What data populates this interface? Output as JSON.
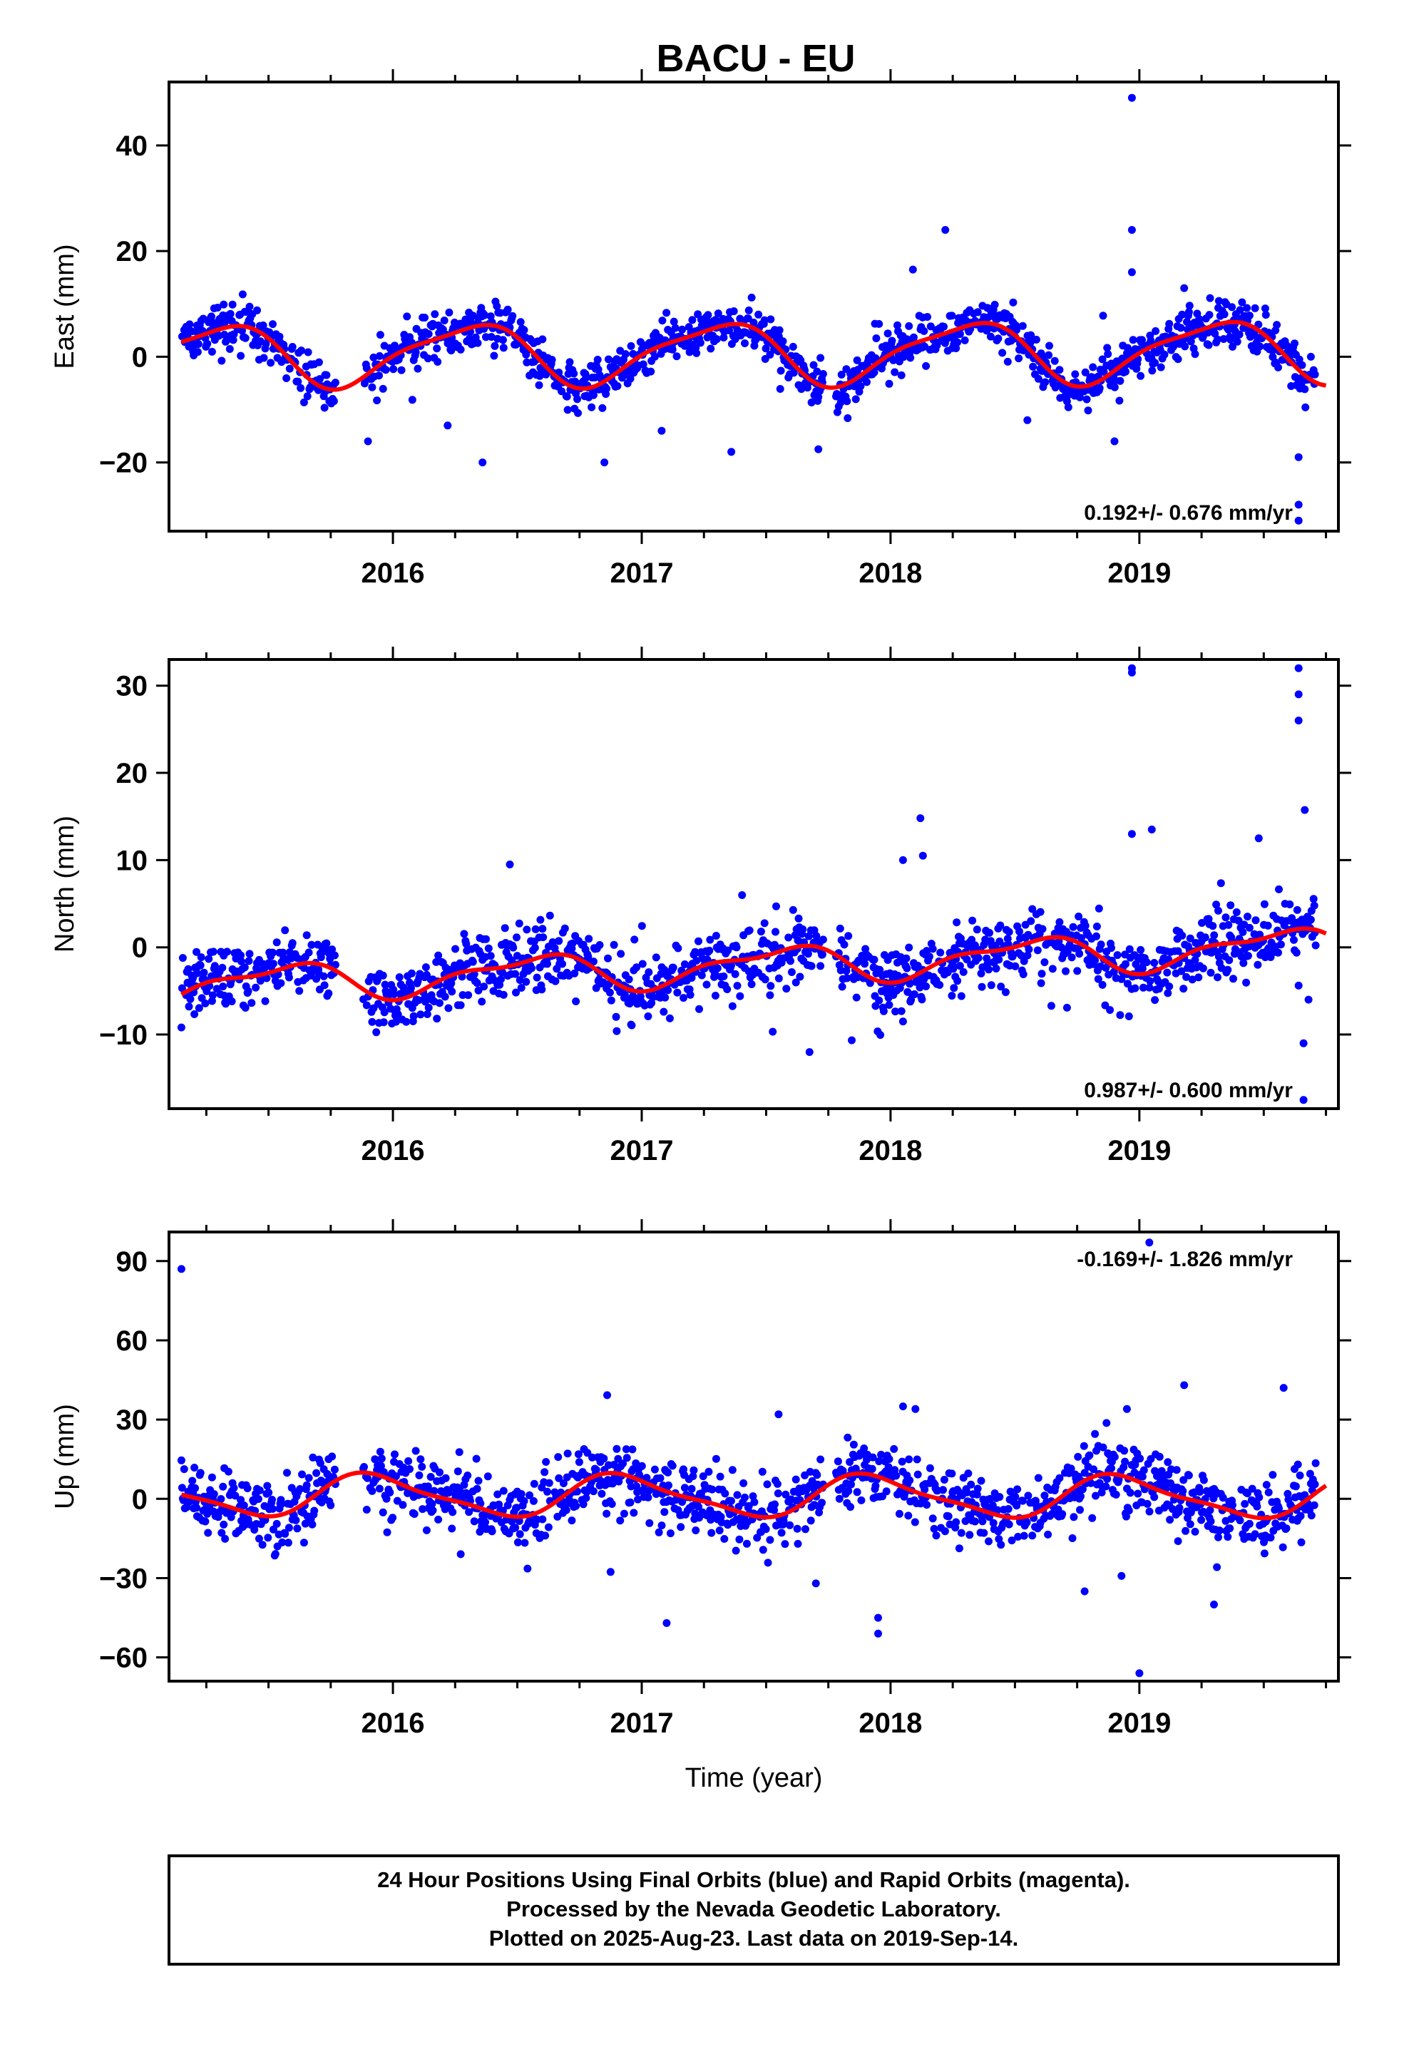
{
  "title": "BACU - EU",
  "chart_data": [
    {
      "type": "scatter",
      "id": "east",
      "ylabel": "East (mm)",
      "xlabel": "",
      "xlim": [
        2015.1,
        2019.8
      ],
      "ylim": [
        -33,
        52
      ],
      "yticks": [
        -20,
        0,
        20,
        40
      ],
      "xticks": [
        2016,
        2017,
        2018,
        2019
      ],
      "ytick_labels": [
        "−20",
        "0",
        "20",
        "40"
      ],
      "xtick_labels": [
        "2016",
        "2017",
        "2018",
        "2019"
      ],
      "rate_text": "0.192+/- 0.676 mm/yr",
      "rate_position": "bottom-right",
      "point_color": "#0000ff",
      "fit_color": "#ff0000",
      "model": {
        "offset": 0.8,
        "trend": 0.19,
        "amp1": 5.6,
        "phase1": 0.05,
        "amp2": 1.4,
        "phase2": 0.35
      },
      "noise": 2.2,
      "gaps": [
        [
          2015.77,
          2015.88
        ],
        [
          2017.73,
          2017.78
        ]
      ],
      "fit_segments": [
        [
          2015.15,
          2019.75
        ]
      ],
      "outliers": [
        [
          2015.9,
          -16
        ],
        [
          2016.22,
          -13
        ],
        [
          2016.36,
          -20
        ],
        [
          2016.85,
          -20
        ],
        [
          2017.08,
          -14
        ],
        [
          2017.36,
          -18
        ],
        [
          2017.71,
          -17.5
        ],
        [
          2018.09,
          16.5
        ],
        [
          2018.22,
          24
        ],
        [
          2018.55,
          -12
        ],
        [
          2018.97,
          49
        ],
        [
          2018.97,
          24
        ],
        [
          2018.97,
          16
        ],
        [
          2018.9,
          -16
        ],
        [
          2019.18,
          13
        ],
        [
          2019.64,
          -19
        ],
        [
          2019.64,
          -28
        ],
        [
          2019.64,
          -31
        ]
      ]
    },
    {
      "type": "scatter",
      "id": "north",
      "ylabel": "North (mm)",
      "xlabel": "",
      "xlim": [
        2015.1,
        2019.8
      ],
      "ylim": [
        -18.5,
        33
      ],
      "yticks": [
        -10,
        0,
        10,
        20,
        30
      ],
      "xticks": [
        2016,
        2017,
        2018,
        2019
      ],
      "ytick_labels": [
        "−10",
        "0",
        "10",
        "20",
        "30"
      ],
      "xtick_labels": [
        "2016",
        "2017",
        "2018",
        "2019"
      ],
      "rate_text": "0.987+/- 0.600 mm/yr",
      "rate_position": "bottom-right",
      "point_color": "#0000ff",
      "fit_color": "#ff0000",
      "model": {
        "offset": -2.0,
        "trend": 0.99,
        "amp1": 1.9,
        "phase1": 0.3,
        "amp2": 0.8,
        "phase2": 0.1
      },
      "noise": 1.9,
      "gaps": [
        [
          2015.77,
          2015.88
        ],
        [
          2017.73,
          2017.78
        ]
      ],
      "fit_segments": [
        [
          2015.15,
          2019.75
        ]
      ],
      "outliers": [
        [
          2016.47,
          9.5
        ],
        [
          2018.05,
          -8.5
        ],
        [
          2018.05,
          10
        ],
        [
          2018.12,
          14.8
        ],
        [
          2018.13,
          10.5
        ],
        [
          2018.97,
          32
        ],
        [
          2018.97,
          31.5
        ],
        [
          2018.97,
          13
        ],
        [
          2019.05,
          13.5
        ],
        [
          2019.48,
          12.5
        ],
        [
          2019.64,
          32
        ],
        [
          2019.64,
          29
        ],
        [
          2019.64,
          26
        ],
        [
          2019.66,
          -11
        ],
        [
          2019.66,
          -17.5
        ],
        [
          2019.68,
          -6
        ]
      ]
    },
    {
      "type": "scatter",
      "id": "up",
      "ylabel": "Up (mm)",
      "xlabel": "Time (year)",
      "xlim": [
        2015.1,
        2019.8
      ],
      "ylim": [
        -69,
        101
      ],
      "yticks": [
        -60,
        -30,
        0,
        30,
        60,
        90
      ],
      "xticks": [
        2016,
        2017,
        2018,
        2019
      ],
      "ytick_labels": [
        "−60",
        "−30",
        "0",
        "30",
        "60",
        "90"
      ],
      "xtick_labels": [
        "2016",
        "2017",
        "2018",
        "2019"
      ],
      "rate_text": "-0.169+/- 1.826 mm/yr",
      "rate_position": "top-right",
      "point_color": "#0000ff",
      "fit_color": "#ff0000",
      "model": {
        "offset": 1.0,
        "trend": -0.17,
        "amp1": 7.5,
        "phase1": 0.68,
        "amp2": 2.0,
        "phase2": 0.2
      },
      "noise": 6.5,
      "gaps": [
        [
          2015.77,
          2015.88
        ],
        [
          2017.73,
          2017.78
        ]
      ],
      "fit_segments": [
        [
          2015.15,
          2019.75
        ]
      ],
      "outliers": [
        [
          2015.15,
          87
        ],
        [
          2017.1,
          -47
        ],
        [
          2017.55,
          32
        ],
        [
          2017.7,
          -32
        ],
        [
          2017.95,
          -45
        ],
        [
          2017.95,
          -51
        ],
        [
          2018.05,
          35
        ],
        [
          2018.1,
          34
        ],
        [
          2018.78,
          -35
        ],
        [
          2018.95,
          34
        ],
        [
          2019.0,
          -66
        ],
        [
          2019.04,
          97
        ],
        [
          2019.18,
          43
        ],
        [
          2019.3,
          -40
        ],
        [
          2019.58,
          42
        ]
      ]
    }
  ],
  "footer": {
    "line1": "24 Hour Positions Using Final Orbits (blue) and Rapid Orbits (magenta).",
    "line2": "Processed by the Nevada Geodetic Laboratory.",
    "line3": "Plotted on 2025-Aug-23. Last data on 2019-Sep-14."
  }
}
